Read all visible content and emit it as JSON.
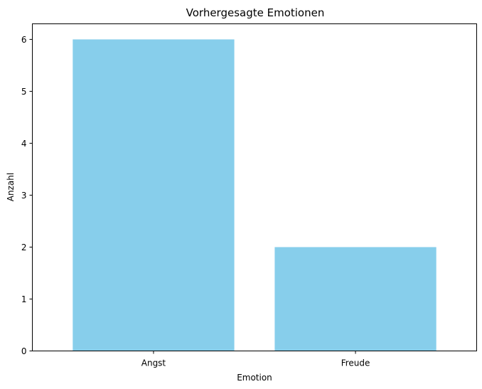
{
  "chart_data": {
    "type": "bar",
    "title": "Vorhergesagte Emotionen",
    "xlabel": "Emotion",
    "ylabel": "Anzahl",
    "categories": [
      "Angst",
      "Freude"
    ],
    "values": [
      6,
      2
    ],
    "ylim": [
      0,
      6.3
    ],
    "yticks": [
      0,
      1,
      2,
      3,
      4,
      5,
      6
    ],
    "bar_color": "#87ceeb",
    "grid": false,
    "legend": "none"
  }
}
